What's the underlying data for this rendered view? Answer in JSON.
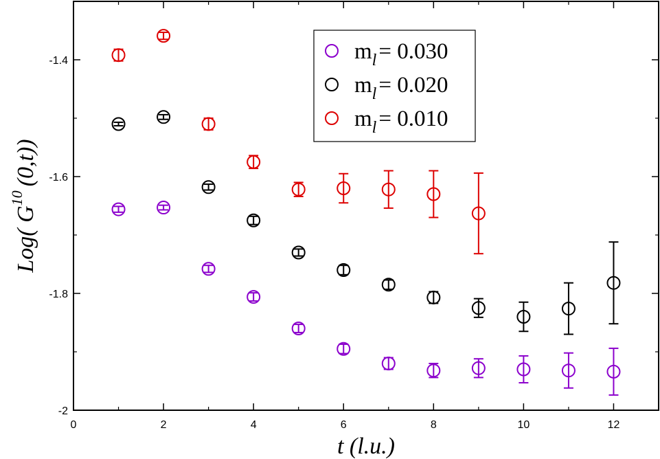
{
  "chart_data": {
    "type": "scatter",
    "xlabel": "t  (l.u.)",
    "ylabel": "Log( G10(0,t))",
    "ylabel_parts": {
      "prefix": "Log( G",
      "superscript": "10",
      "suffix": "(0,t))"
    },
    "xlim": [
      0,
      13
    ],
    "ylim": [
      -2.0,
      -1.3
    ],
    "xticks": [
      0,
      2,
      4,
      6,
      8,
      10,
      12
    ],
    "xtick_labels": [
      "0",
      "2",
      "4",
      "6",
      "8",
      "10",
      "12"
    ],
    "yticks": [
      -2.0,
      -1.8,
      -1.6,
      -1.4
    ],
    "ytick_labels": [
      "-2",
      "-1.8",
      "-1.6",
      "-1.4"
    ],
    "grid": false,
    "legend_position": "top-center",
    "series": [
      {
        "name": "m_l = 0.030",
        "legend_symbol": "m",
        "legend_subscript": "l",
        "legend_value": "= 0.030",
        "color": "#8b00cc",
        "x": [
          1,
          2,
          3,
          4,
          5,
          6,
          7,
          8,
          9,
          10,
          11,
          12
        ],
        "y": [
          -1.656,
          -1.653,
          -1.758,
          -1.806,
          -1.86,
          -1.895,
          -1.92,
          -1.932,
          -1.928,
          -1.93,
          -1.932,
          -1.934
        ],
        "err": [
          0.005,
          0.004,
          0.006,
          0.007,
          0.007,
          0.008,
          0.01,
          0.012,
          0.016,
          0.023,
          0.03,
          0.04
        ]
      },
      {
        "name": "m_l = 0.020",
        "legend_symbol": "m",
        "legend_subscript": "l",
        "legend_value": "= 0.020",
        "color": "#000000",
        "x": [
          1,
          2,
          3,
          4,
          5,
          6,
          7,
          8,
          9,
          10,
          11,
          12
        ],
        "y": [
          -1.51,
          -1.498,
          -1.618,
          -1.675,
          -1.73,
          -1.76,
          -1.785,
          -1.807,
          -1.825,
          -1.84,
          -1.826,
          -1.782
        ],
        "err": [
          0.003,
          0.004,
          0.005,
          0.007,
          0.006,
          0.008,
          0.008,
          0.01,
          0.016,
          0.025,
          0.044,
          0.07
        ]
      },
      {
        "name": "m_l = 0.010",
        "legend_symbol": "m",
        "legend_subscript": "l",
        "legend_value": "= 0.010",
        "color": "#dd0000",
        "x": [
          1,
          2,
          3,
          4,
          5,
          6,
          7,
          8,
          9
        ],
        "y": [
          -1.392,
          -1.359,
          -1.51,
          -1.575,
          -1.622,
          -1.62,
          -1.622,
          -1.63,
          -1.663
        ],
        "err": [
          0.01,
          0.006,
          0.01,
          0.011,
          0.012,
          0.025,
          0.032,
          0.04,
          0.069
        ]
      }
    ]
  }
}
